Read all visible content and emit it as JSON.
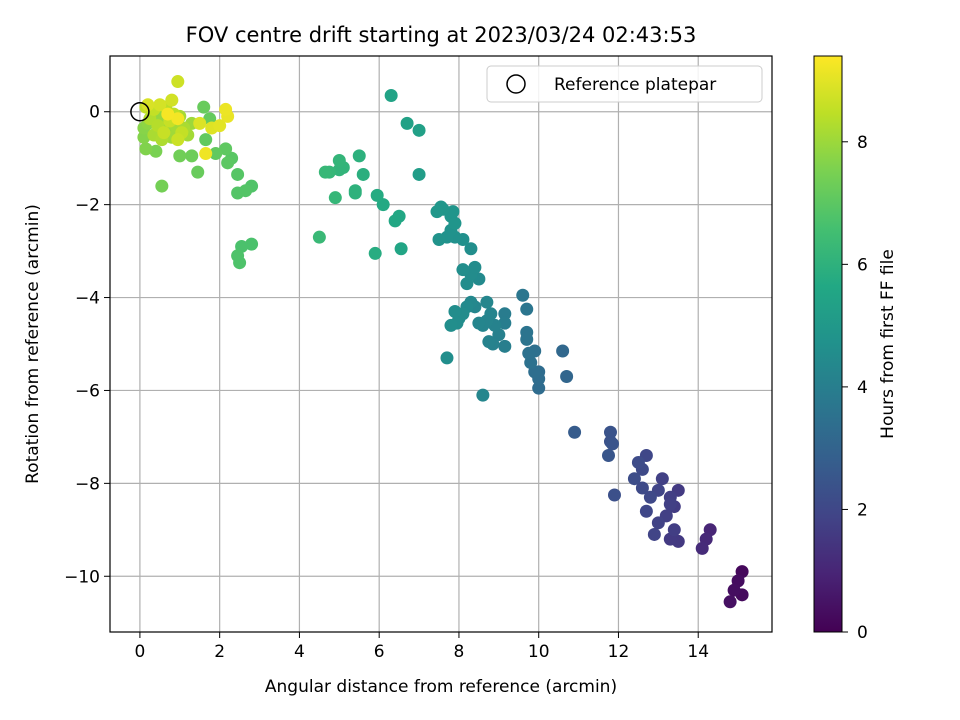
{
  "chart_data": {
    "type": "scatter",
    "title": "FOV centre drift starting at 2023/03/24 02:43:53",
    "xlabel": "Angular distance from reference (arcmin)",
    "ylabel": "Rotation from reference (arcmin)",
    "xlim": [
      -0.75,
      15.85
    ],
    "ylim": [
      -11.2,
      1.2
    ],
    "x_ticks": [
      0,
      2,
      4,
      6,
      8,
      10,
      12,
      14
    ],
    "y_ticks": [
      0,
      -2,
      -4,
      -6,
      -8,
      -10
    ],
    "x_tick_labels": [
      "0",
      "2",
      "4",
      "6",
      "8",
      "10",
      "12",
      "14"
    ],
    "y_tick_labels": [
      "0",
      "−2",
      "−4",
      "−6",
      "−8",
      "−10"
    ],
    "grid": true,
    "colormap": "viridis",
    "colorbar": {
      "label": "Hours from first FF file",
      "range": [
        0,
        9.4
      ],
      "ticks": [
        0,
        2,
        4,
        6,
        8
      ],
      "tick_labels": [
        "0",
        "2",
        "4",
        "6",
        "8"
      ]
    },
    "legend": {
      "position": "top-right",
      "entries": [
        "Reference platepar"
      ]
    },
    "reference_point": {
      "x": 0,
      "y": 0
    },
    "points": [
      {
        "x": 15.1,
        "y": -9.9,
        "c": 0.2
      },
      {
        "x": 15.0,
        "y": -10.1,
        "c": 0.3
      },
      {
        "x": 14.9,
        "y": -10.3,
        "c": 0.35
      },
      {
        "x": 15.1,
        "y": -10.4,
        "c": 0.25
      },
      {
        "x": 14.8,
        "y": -10.55,
        "c": 0.4
      },
      {
        "x": 14.3,
        "y": -9.0,
        "c": 1.0
      },
      {
        "x": 14.2,
        "y": -9.2,
        "c": 1.1
      },
      {
        "x": 14.1,
        "y": -9.4,
        "c": 1.15
      },
      {
        "x": 13.5,
        "y": -8.15,
        "c": 1.6
      },
      {
        "x": 13.3,
        "y": -8.3,
        "c": 1.7
      },
      {
        "x": 13.1,
        "y": -7.9,
        "c": 1.8
      },
      {
        "x": 13.4,
        "y": -8.5,
        "c": 1.65
      },
      {
        "x": 13.2,
        "y": -8.7,
        "c": 1.75
      },
      {
        "x": 13.0,
        "y": -8.85,
        "c": 1.85
      },
      {
        "x": 13.4,
        "y": -9.0,
        "c": 1.7
      },
      {
        "x": 13.3,
        "y": -9.2,
        "c": 1.6
      },
      {
        "x": 13.5,
        "y": -9.25,
        "c": 1.55
      },
      {
        "x": 12.9,
        "y": -9.1,
        "c": 1.9
      },
      {
        "x": 12.7,
        "y": -7.4,
        "c": 2.0
      },
      {
        "x": 12.6,
        "y": -7.7,
        "c": 2.1
      },
      {
        "x": 12.5,
        "y": -7.55,
        "c": 2.15
      },
      {
        "x": 12.4,
        "y": -7.9,
        "c": 2.2
      },
      {
        "x": 12.6,
        "y": -8.1,
        "c": 2.1
      },
      {
        "x": 12.8,
        "y": -8.3,
        "c": 2.05
      },
      {
        "x": 12.7,
        "y": -8.6,
        "c": 2.0
      },
      {
        "x": 13.0,
        "y": -8.15,
        "c": 1.9
      },
      {
        "x": 13.3,
        "y": -8.45,
        "c": 1.75
      },
      {
        "x": 11.9,
        "y": -8.25,
        "c": 2.3
      },
      {
        "x": 11.8,
        "y": -6.9,
        "c": 2.4
      },
      {
        "x": 11.8,
        "y": -7.1,
        "c": 2.35
      },
      {
        "x": 11.85,
        "y": -7.15,
        "c": 2.45
      },
      {
        "x": 11.75,
        "y": -7.4,
        "c": 2.5
      },
      {
        "x": 10.9,
        "y": -6.9,
        "c": 2.7
      },
      {
        "x": 10.7,
        "y": -5.7,
        "c": 3.1
      },
      {
        "x": 10.6,
        "y": -5.15,
        "c": 3.15
      },
      {
        "x": 10.0,
        "y": -5.6,
        "c": 3.3
      },
      {
        "x": 10.0,
        "y": -5.75,
        "c": 3.35
      },
      {
        "x": 10.0,
        "y": -5.95,
        "c": 3.3
      },
      {
        "x": 9.9,
        "y": -5.6,
        "c": 3.4
      },
      {
        "x": 9.9,
        "y": -5.15,
        "c": 3.45
      },
      {
        "x": 9.8,
        "y": -5.4,
        "c": 3.5
      },
      {
        "x": 9.75,
        "y": -5.2,
        "c": 3.5
      },
      {
        "x": 9.7,
        "y": -4.75,
        "c": 3.6
      },
      {
        "x": 9.7,
        "y": -4.9,
        "c": 3.6
      },
      {
        "x": 9.7,
        "y": -4.25,
        "c": 3.65
      },
      {
        "x": 9.6,
        "y": -3.95,
        "c": 3.7
      },
      {
        "x": 9.15,
        "y": -4.35,
        "c": 3.9
      },
      {
        "x": 9.15,
        "y": -4.55,
        "c": 3.95
      },
      {
        "x": 9.15,
        "y": -5.05,
        "c": 4.0
      },
      {
        "x": 9.0,
        "y": -4.8,
        "c": 4.05
      },
      {
        "x": 8.85,
        "y": -5.0,
        "c": 4.1
      },
      {
        "x": 8.75,
        "y": -4.95,
        "c": 4.15
      },
      {
        "x": 8.7,
        "y": -4.5,
        "c": 4.2
      },
      {
        "x": 8.6,
        "y": -4.6,
        "c": 4.2
      },
      {
        "x": 8.5,
        "y": -4.55,
        "c": 4.25
      },
      {
        "x": 8.4,
        "y": -4.2,
        "c": 4.3
      },
      {
        "x": 8.3,
        "y": -4.1,
        "c": 4.35
      },
      {
        "x": 8.6,
        "y": -6.1,
        "c": 4.3
      },
      {
        "x": 7.7,
        "y": -5.3,
        "c": 4.6
      },
      {
        "x": 7.8,
        "y": -4.6,
        "c": 4.6
      },
      {
        "x": 7.9,
        "y": -4.3,
        "c": 4.55
      },
      {
        "x": 7.95,
        "y": -4.55,
        "c": 4.55
      },
      {
        "x": 8.0,
        "y": -4.45,
        "c": 4.5
      },
      {
        "x": 8.1,
        "y": -4.35,
        "c": 4.5
      },
      {
        "x": 8.2,
        "y": -4.2,
        "c": 4.45
      },
      {
        "x": 8.7,
        "y": -4.1,
        "c": 4.3
      },
      {
        "x": 8.8,
        "y": -4.35,
        "c": 4.2
      },
      {
        "x": 8.9,
        "y": -4.6,
        "c": 4.15
      },
      {
        "x": 8.3,
        "y": -3.5,
        "c": 4.5
      },
      {
        "x": 8.4,
        "y": -3.35,
        "c": 4.5
      },
      {
        "x": 8.5,
        "y": -3.6,
        "c": 4.45
      },
      {
        "x": 8.1,
        "y": -3.4,
        "c": 4.6
      },
      {
        "x": 8.2,
        "y": -3.7,
        "c": 4.55
      },
      {
        "x": 8.3,
        "y": -2.95,
        "c": 4.6
      },
      {
        "x": 8.1,
        "y": -2.75,
        "c": 4.65
      },
      {
        "x": 7.9,
        "y": -2.7,
        "c": 4.7
      },
      {
        "x": 7.8,
        "y": -2.55,
        "c": 4.75
      },
      {
        "x": 7.7,
        "y": -2.7,
        "c": 4.75
      },
      {
        "x": 7.5,
        "y": -2.75,
        "c": 4.8
      },
      {
        "x": 7.8,
        "y": -2.25,
        "c": 4.85
      },
      {
        "x": 7.9,
        "y": -2.4,
        "c": 4.85
      },
      {
        "x": 7.6,
        "y": -2.1,
        "c": 4.9
      },
      {
        "x": 7.55,
        "y": -2.05,
        "c": 4.9
      },
      {
        "x": 7.85,
        "y": -2.15,
        "c": 4.85
      },
      {
        "x": 7.45,
        "y": -2.15,
        "c": 4.95
      },
      {
        "x": 7.0,
        "y": -1.35,
        "c": 5.2
      },
      {
        "x": 7.0,
        "y": -0.4,
        "c": 5.3
      },
      {
        "x": 6.7,
        "y": -0.25,
        "c": 5.35
      },
      {
        "x": 6.3,
        "y": 0.35,
        "c": 5.45
      },
      {
        "x": 6.55,
        "y": -2.95,
        "c": 5.5
      },
      {
        "x": 6.5,
        "y": -2.25,
        "c": 5.6
      },
      {
        "x": 6.4,
        "y": -2.35,
        "c": 5.6
      },
      {
        "x": 6.1,
        "y": -2.0,
        "c": 5.7
      },
      {
        "x": 5.95,
        "y": -1.8,
        "c": 5.75
      },
      {
        "x": 5.9,
        "y": -3.05,
        "c": 5.8
      },
      {
        "x": 5.6,
        "y": -1.35,
        "c": 5.9
      },
      {
        "x": 5.5,
        "y": -0.95,
        "c": 5.95
      },
      {
        "x": 5.4,
        "y": -1.7,
        "c": 6.0
      },
      {
        "x": 5.4,
        "y": -1.75,
        "c": 6.0
      },
      {
        "x": 5.1,
        "y": -1.2,
        "c": 6.1
      },
      {
        "x": 5.0,
        "y": -1.25,
        "c": 6.1
      },
      {
        "x": 5.0,
        "y": -1.05,
        "c": 6.15
      },
      {
        "x": 4.9,
        "y": -1.85,
        "c": 6.2
      },
      {
        "x": 4.75,
        "y": -1.3,
        "c": 6.2
      },
      {
        "x": 4.65,
        "y": -1.3,
        "c": 6.25
      },
      {
        "x": 4.5,
        "y": -2.7,
        "c": 6.3
      },
      {
        "x": 2.8,
        "y": -2.85,
        "c": 6.7
      },
      {
        "x": 2.55,
        "y": -2.9,
        "c": 6.7
      },
      {
        "x": 2.45,
        "y": -3.1,
        "c": 6.75
      },
      {
        "x": 2.5,
        "y": -3.25,
        "c": 6.75
      },
      {
        "x": 2.8,
        "y": -1.6,
        "c": 6.8
      },
      {
        "x": 2.65,
        "y": -1.7,
        "c": 6.85
      },
      {
        "x": 2.45,
        "y": -1.75,
        "c": 6.85
      },
      {
        "x": 2.45,
        "y": -1.35,
        "c": 6.9
      },
      {
        "x": 2.3,
        "y": -1.0,
        "c": 6.95
      },
      {
        "x": 2.2,
        "y": -1.1,
        "c": 7.0
      },
      {
        "x": 2.15,
        "y": -0.8,
        "c": 7.05
      },
      {
        "x": 1.9,
        "y": -0.9,
        "c": 7.1
      },
      {
        "x": 1.65,
        "y": -0.6,
        "c": 7.1
      },
      {
        "x": 1.75,
        "y": -0.15,
        "c": 7.15
      },
      {
        "x": 1.6,
        "y": 0.1,
        "c": 7.2
      },
      {
        "x": 1.45,
        "y": -1.3,
        "c": 7.2
      },
      {
        "x": 1.3,
        "y": -0.95,
        "c": 7.3
      },
      {
        "x": 1.0,
        "y": -0.95,
        "c": 7.35
      },
      {
        "x": 0.55,
        "y": -1.6,
        "c": 7.4
      },
      {
        "x": 0.4,
        "y": -0.85,
        "c": 7.5
      },
      {
        "x": 0.15,
        "y": -0.8,
        "c": 7.6
      },
      {
        "x": 0.1,
        "y": -0.55,
        "c": 7.65
      },
      {
        "x": 0.1,
        "y": -0.35,
        "c": 7.7
      },
      {
        "x": 0.2,
        "y": -0.25,
        "c": 7.8
      },
      {
        "x": 0.3,
        "y": -0.1,
        "c": 7.85
      },
      {
        "x": 0.5,
        "y": 0.0,
        "c": 7.9
      },
      {
        "x": 0.6,
        "y": -0.2,
        "c": 7.95
      },
      {
        "x": 0.7,
        "y": -0.4,
        "c": 8.0
      },
      {
        "x": 0.8,
        "y": -0.55,
        "c": 8.05
      },
      {
        "x": 0.9,
        "y": -0.3,
        "c": 8.1
      },
      {
        "x": 1.0,
        "y": -0.1,
        "c": 8.15
      },
      {
        "x": 1.1,
        "y": -0.35,
        "c": 8.2
      },
      {
        "x": 0.35,
        "y": -0.5,
        "c": 8.2
      },
      {
        "x": 0.55,
        "y": -0.6,
        "c": 8.25
      },
      {
        "x": 0.25,
        "y": -0.15,
        "c": 8.3
      },
      {
        "x": 0.45,
        "y": -0.3,
        "c": 8.35
      },
      {
        "x": 0.65,
        "y": 0.1,
        "c": 8.4
      },
      {
        "x": 0.85,
        "y": -0.05,
        "c": 8.45
      },
      {
        "x": 1.2,
        "y": -0.5,
        "c": 8.1
      },
      {
        "x": 1.3,
        "y": -0.25,
        "c": 8.0
      },
      {
        "x": 0.15,
        "y": 0.1,
        "c": 8.5
      },
      {
        "x": 0.35,
        "y": 0.05,
        "c": 8.55
      },
      {
        "x": 0.75,
        "y": -0.2,
        "c": 8.6
      },
      {
        "x": 0.95,
        "y": -0.6,
        "c": 8.65
      },
      {
        "x": 0.6,
        "y": -0.45,
        "c": 8.6
      },
      {
        "x": 1.05,
        "y": -0.45,
        "c": 8.55
      },
      {
        "x": 0.95,
        "y": 0.65,
        "c": 8.7
      },
      {
        "x": 0.8,
        "y": 0.25,
        "c": 8.75
      },
      {
        "x": 0.5,
        "y": 0.15,
        "c": 8.8
      },
      {
        "x": 0.2,
        "y": 0.15,
        "c": 8.85
      },
      {
        "x": 1.5,
        "y": -0.25,
        "c": 8.9
      },
      {
        "x": 1.8,
        "y": -0.35,
        "c": 8.95
      },
      {
        "x": 2.0,
        "y": -0.3,
        "c": 9.0
      },
      {
        "x": 2.2,
        "y": -0.1,
        "c": 9.1
      },
      {
        "x": 2.15,
        "y": 0.05,
        "c": 9.15
      },
      {
        "x": 1.65,
        "y": -0.9,
        "c": 9.2
      },
      {
        "x": 0.95,
        "y": -0.15,
        "c": 9.25
      },
      {
        "x": 0.7,
        "y": -0.05,
        "c": 9.3
      }
    ]
  }
}
